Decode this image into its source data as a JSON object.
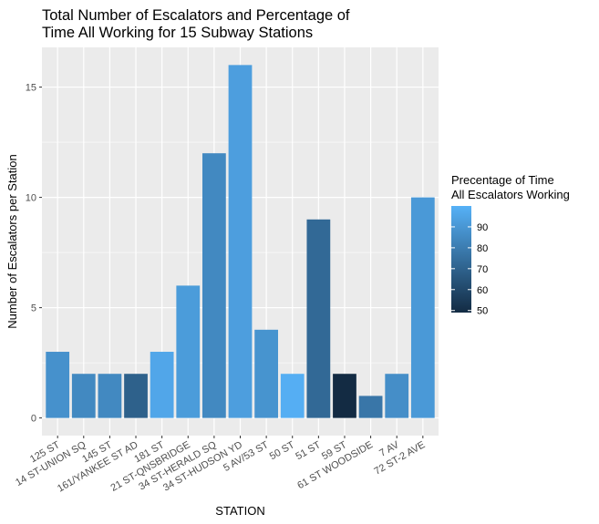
{
  "chart_data": {
    "type": "bar",
    "title": [
      "Total Number of Escalators and Percentage of",
      "Time All Working for 15 Subway Stations"
    ],
    "xlabel": "STATION",
    "ylabel": "Number of Escalators per Station",
    "ylim": [
      0,
      16.8
    ],
    "yticks": [
      0,
      5,
      10,
      15
    ],
    "grid": true,
    "categories": [
      "125 ST",
      "14 ST-UNION SQ",
      "145 ST",
      "161/YANKEE ST AD",
      "181 ST",
      "21 ST-QNSBRIDGE",
      "34 ST-HERALD SQ",
      "34 ST-HUDSON YD",
      "5 AV/53 ST",
      "50 ST",
      "51 ST",
      "59 ST",
      "61 ST WOODSIDE",
      "7 AV",
      "72 ST-2 AVE"
    ],
    "values": [
      3,
      2,
      2,
      2,
      3,
      6,
      12,
      16,
      4,
      2,
      9,
      2,
      1,
      2,
      10
    ],
    "fill_values": [
      88,
      85,
      85,
      70,
      96,
      92,
      85,
      93,
      89,
      99,
      73,
      50,
      78,
      87,
      91
    ],
    "legend": {
      "title": [
        "Precentage of Time",
        "All Escalators Working"
      ],
      "ticks": [
        50,
        60,
        70,
        80,
        90
      ],
      "range": [
        50,
        100
      ],
      "position": "right",
      "color_low": "#132B43",
      "color_high": "#56B1F7"
    },
    "panel_background": "#EBEBEB",
    "gridline_color": "#ffffff"
  }
}
